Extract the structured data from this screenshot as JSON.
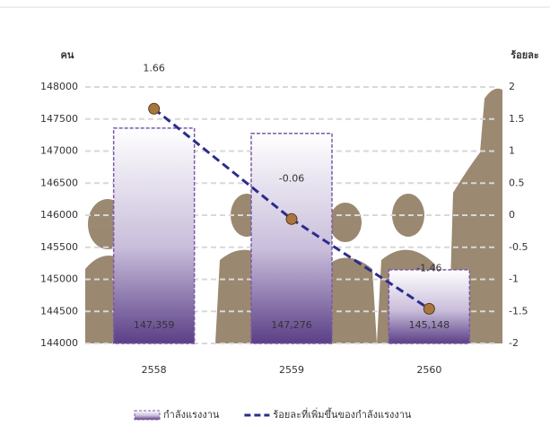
{
  "chart_data": {
    "type": "bar",
    "y_label": "คน",
    "y2_label": "ร้อยละ",
    "categories": [
      "2558",
      "2559",
      "2560"
    ],
    "series": [
      {
        "name": "กำลังแรงงาน",
        "type": "bar",
        "color": "#7a5aa8",
        "values": [
          147359,
          147276,
          145148
        ],
        "value_labels": [
          "147,359",
          "147,276",
          "145,148"
        ]
      },
      {
        "name": "ร้อยละที่เพิ่มขึ้นของกำลังแรงงาน",
        "type": "line",
        "axis": "y2",
        "color": "#2b2c8c",
        "values": [
          1.66,
          -0.06,
          -1.46
        ]
      }
    ],
    "line_label_color": "#e8302a",
    "ylim": [
      144000,
      148000
    ],
    "yticks": [
      144000,
      144500,
      145000,
      145500,
      146000,
      146500,
      147000,
      147500,
      148000
    ],
    "y2lim": [
      -2,
      2
    ],
    "y2ticks": [
      -2,
      -1.5,
      -1,
      -0.5,
      0,
      0.5,
      1,
      1.5,
      2
    ],
    "grid": true,
    "legend": "bottom"
  }
}
